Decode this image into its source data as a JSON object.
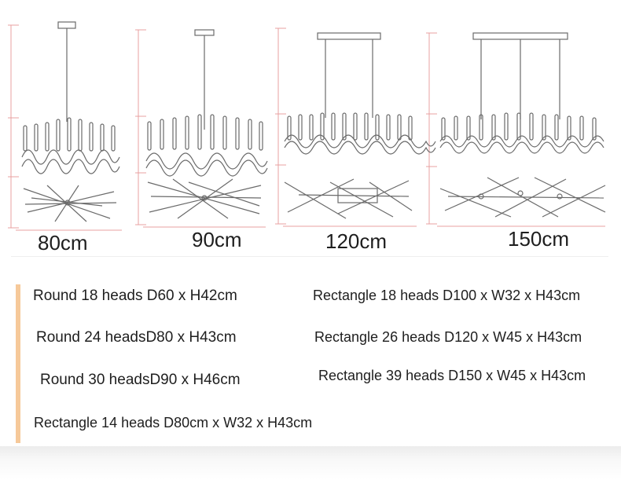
{
  "sizes": [
    {
      "label": "80cm"
    },
    {
      "label": "90cm"
    },
    {
      "label": "120cm"
    },
    {
      "label": "150cm"
    }
  ],
  "specs": {
    "left": [
      "Round 18 heads D60 x H42cm",
      "Round 24 headsD80 x H43cm",
      "Round 30 headsD90 x H46cm",
      "Rectangle 14 heads D80cm x W32 x H43cm"
    ],
    "right": [
      "Rectangle 18 heads D100 x W32 x H43cm",
      "Rectangle 26 heads D120 x W45 x H43cm",
      "Rectangle 39 heads D150 x W45 x H43cm"
    ]
  },
  "colors": {
    "accent_bar": "#f6c99a",
    "dimension_red": "#e8a0a0",
    "sketch": "#6a6a6a"
  }
}
